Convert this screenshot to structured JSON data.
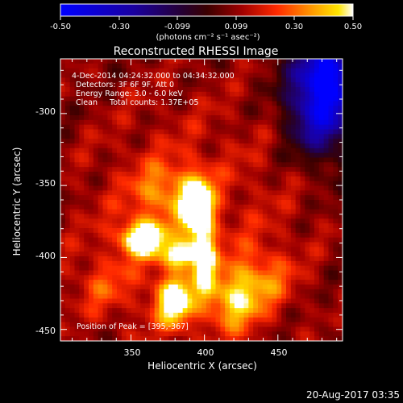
{
  "colorbar": {
    "ticks": [
      "-0.50",
      "-0.30",
      "-0.099",
      "0.099",
      "0.30",
      "0.50"
    ],
    "unit_label": "(photons cm⁻² s⁻¹ asec⁻²)",
    "range": [
      -0.5,
      0.5
    ]
  },
  "plot": {
    "title": "Reconstructed RHESSI Image",
    "info_lines": [
      "4-Dec-2014 04:24:32.000 to 04:34:32.000",
      "Detectors: 3F 6F 9F, Att 0",
      "Energy Range: 3.0 - 6.0 keV",
      "Clean     Total counts: 1.37E+05"
    ],
    "peak_label": "Position of Peak = [395,-367]",
    "x_label": "Heliocentric X (arcsec)",
    "y_label": "Heliocentric Y (arcsec)",
    "x_ticks": [
      "350",
      "400",
      "450"
    ],
    "y_ticks": [
      "-300",
      "-350",
      "-400",
      "-450"
    ],
    "x_range": [
      302,
      494
    ],
    "y_range": [
      -458,
      -262
    ]
  },
  "footer": {
    "timestamp": "20-Aug-2017 03:35"
  },
  "map": {
    "peak": [
      395,
      -367
    ],
    "sources": [
      {
        "x": 395,
        "y": -365,
        "amp": 0.62,
        "sx": 7,
        "sy": 14
      },
      {
        "x": 358,
        "y": -387,
        "amp": 0.55,
        "sx": 10,
        "sy": 8
      },
      {
        "x": 385,
        "y": -398,
        "amp": 0.42,
        "sx": 9,
        "sy": 6
      },
      {
        "x": 400,
        "y": -402,
        "amp": 0.4,
        "sx": 5,
        "sy": 16
      },
      {
        "x": 380,
        "y": -430,
        "amp": 0.45,
        "sx": 9,
        "sy": 12
      },
      {
        "x": 420,
        "y": -430,
        "amp": 0.3,
        "sx": 12,
        "sy": 14
      },
      {
        "x": 372,
        "y": -355,
        "amp": 0.2,
        "sx": 14,
        "sy": 14
      },
      {
        "x": 440,
        "y": -415,
        "amp": 0.18,
        "sx": 14,
        "sy": 14
      },
      {
        "x": 330,
        "y": -420,
        "amp": 0.12,
        "sx": 14,
        "sy": 14
      },
      {
        "x": 480,
        "y": -290,
        "amp": -0.55,
        "sx": 16,
        "sy": 26
      },
      {
        "x": 484,
        "y": -270,
        "amp": -0.25,
        "sx": 10,
        "sy": 12
      }
    ],
    "background": 0.05
  },
  "colors": {
    "background": "#000000",
    "text": "#ffffff"
  }
}
